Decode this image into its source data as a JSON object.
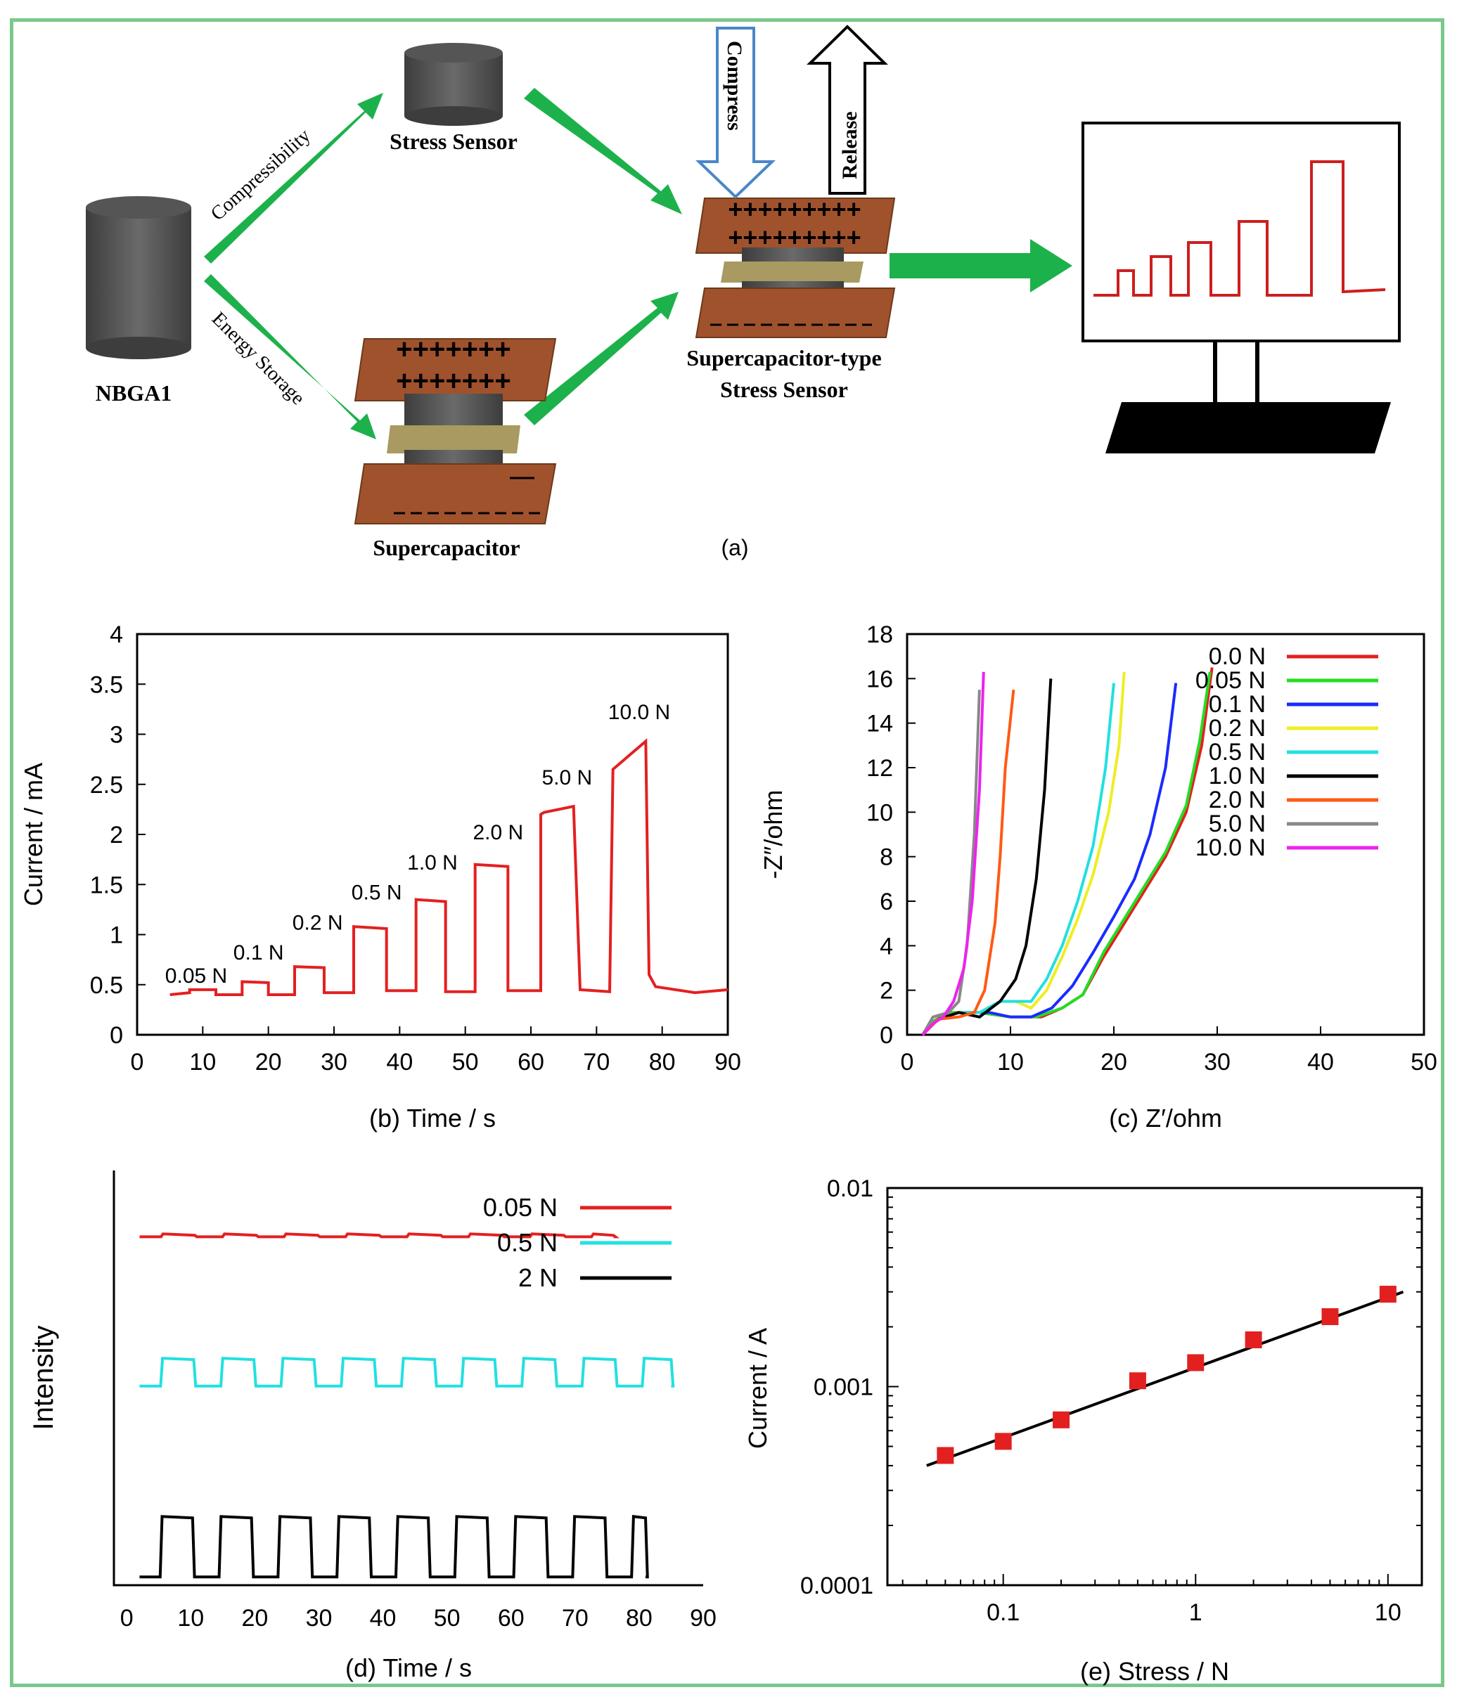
{
  "colors": {
    "arrow": "#1db14b",
    "plate": "#8b4513",
    "cyl": "#555555",
    "sep": "#a89a60",
    "trace": "#cc1f1f",
    "frame": "#7ac98b"
  },
  "schematic": {
    "nbga_label": "NBGA1",
    "arrow_upper": "Compressibility",
    "arrow_lower": "Energy Storage",
    "stress_sensor": "Stress Sensor",
    "supercapacitor": "Supercapacitor",
    "sc_stress_line1": "Supercapacitor-type",
    "sc_stress_line2": "Stress Sensor",
    "compress": "Compress",
    "release": "Release",
    "plus_row_small": "+++++++",
    "plus_row_big": "+++++++++",
    "caption": "(a)"
  },
  "chart_data": [
    {
      "id": "b",
      "type": "line",
      "xlabel": "(b) Time / s",
      "ylabel": "Current / mA",
      "xlim": [
        0,
        90
      ],
      "ylim": [
        0,
        4
      ],
      "xticks": [
        0,
        10,
        20,
        30,
        40,
        50,
        60,
        70,
        80,
        90
      ],
      "yticks": [
        "0",
        "0.5",
        "1",
        "1.5",
        "2",
        "2.5",
        "3",
        "3.5",
        "4"
      ],
      "annotations": [
        {
          "text": "0.05 N",
          "x": 9,
          "y": 0.52
        },
        {
          "text": "0.1 N",
          "x": 18.5,
          "y": 0.75
        },
        {
          "text": "0.2 N",
          "x": 27.5,
          "y": 1.05
        },
        {
          "text": "0.5 N",
          "x": 36.5,
          "y": 1.35
        },
        {
          "text": "1.0 N",
          "x": 45,
          "y": 1.65
        },
        {
          "text": "2.0 N",
          "x": 55,
          "y": 1.95
        },
        {
          "text": "5.0 N",
          "x": 65.5,
          "y": 2.5
        },
        {
          "text": "10.0 N",
          "x": 76.5,
          "y": 3.15
        }
      ],
      "series": [
        {
          "x": [
            5,
            8,
            8,
            12,
            12,
            16,
            16,
            20,
            20,
            24,
            24,
            28.5,
            28.5,
            33,
            33,
            38,
            38,
            42.5,
            42.5,
            47,
            47,
            51.5,
            51.5,
            56.5,
            56.5,
            61.5,
            61.5,
            62,
            66.5,
            67.5,
            72,
            72.5,
            77.5,
            78,
            79,
            85,
            90
          ],
          "y": [
            0.4,
            0.42,
            0.45,
            0.45,
            0.4,
            0.4,
            0.53,
            0.52,
            0.4,
            0.4,
            0.68,
            0.67,
            0.42,
            0.42,
            1.08,
            1.06,
            0.44,
            0.44,
            1.35,
            1.33,
            0.43,
            0.43,
            1.7,
            1.68,
            0.44,
            0.44,
            2.2,
            2.22,
            2.28,
            0.45,
            0.43,
            2.65,
            2.93,
            0.6,
            0.48,
            0.42,
            0.45
          ]
        }
      ]
    },
    {
      "id": "c",
      "type": "line",
      "xlabel": "(c) Z′/ohm",
      "ylabel": "-Z″/ohm",
      "xlim": [
        0,
        50
      ],
      "ylim": [
        0,
        18
      ],
      "xticks": [
        0,
        10,
        20,
        30,
        40,
        50
      ],
      "yticks": [
        "0",
        "2",
        "4",
        "6",
        "8",
        "10",
        "12",
        "14",
        "16",
        "18"
      ],
      "legend_position": "top-right",
      "series": [
        {
          "name": "0.0 N",
          "color": "#e32020",
          "x": [
            1.5,
            2.5,
            4,
            7,
            10,
            13,
            15,
            17,
            19,
            21,
            23,
            25,
            27,
            28.5,
            29.5
          ],
          "y": [
            0,
            0.6,
            1,
            1,
            0.8,
            0.8,
            1.2,
            1.8,
            3.5,
            5,
            6.5,
            8,
            10,
            13,
            16.5
          ]
        },
        {
          "name": "0.05 N",
          "color": "#22dd22",
          "x": [
            1.5,
            2.5,
            4,
            7,
            10,
            12.5,
            15,
            17,
            19,
            21,
            23,
            25,
            27,
            28.3,
            29.3
          ],
          "y": [
            0,
            0.6,
            1,
            1,
            0.8,
            0.8,
            1.2,
            1.8,
            3.7,
            5.2,
            6.7,
            8.2,
            10.3,
            13.2,
            16.3
          ]
        },
        {
          "name": "0.1 N",
          "color": "#1a2bff",
          "x": [
            1.5,
            3,
            5,
            8,
            10,
            12,
            14,
            16,
            18,
            20,
            22,
            23.5,
            25,
            26
          ],
          "y": [
            0,
            0.7,
            1,
            1,
            0.8,
            0.8,
            1.2,
            2.2,
            3.7,
            5.3,
            7,
            9,
            12,
            15.8
          ]
        },
        {
          "name": "0.2 N",
          "color": "#eeee22",
          "x": [
            1.5,
            3,
            5,
            7,
            9,
            10.5,
            12,
            13.5,
            15,
            16.5,
            18,
            19.5,
            20.5,
            21
          ],
          "y": [
            0,
            0.7,
            1,
            1,
            1.5,
            1.5,
            1.2,
            2,
            3.5,
            5.2,
            7.2,
            10,
            13,
            16.3
          ]
        },
        {
          "name": "0.5 N",
          "color": "#22e0e0",
          "x": [
            1.5,
            3,
            5,
            7,
            9,
            10.5,
            12,
            13.5,
            15,
            16.5,
            18,
            19.2,
            20
          ],
          "y": [
            0,
            0.7,
            1,
            1,
            1.5,
            1.5,
            1.5,
            2.5,
            4,
            6,
            8.5,
            12,
            15.8
          ]
        },
        {
          "name": "1.0 N",
          "color": "#000000",
          "x": [
            1.5,
            3,
            5,
            7,
            9,
            10.5,
            11.5,
            12.5,
            13.3,
            13.9
          ],
          "y": [
            0,
            0.7,
            1,
            0.8,
            1.5,
            2.5,
            4,
            7,
            11,
            16
          ]
        },
        {
          "name": "2.0 N",
          "color": "#ff5a14",
          "x": [
            1.5,
            3,
            5,
            6.5,
            7.5,
            8.5,
            9,
            9.5,
            10.3
          ],
          "y": [
            0,
            0.7,
            0.8,
            1,
            2,
            5,
            8,
            12,
            15.5
          ]
        },
        {
          "name": "5.0 N",
          "color": "#888888",
          "x": [
            1.5,
            2.5,
            4,
            5,
            5.8,
            6.5,
            7
          ],
          "y": [
            0,
            0.8,
            1,
            1.5,
            4,
            9,
            15.5
          ]
        },
        {
          "name": "10.0 N",
          "color": "#ee22ee",
          "x": [
            1.5,
            2.5,
            3.5,
            4.5,
            5.5,
            6.3,
            7,
            7.4
          ],
          "y": [
            0,
            0.5,
            0.8,
            1.5,
            3,
            6,
            11,
            16.3
          ]
        }
      ]
    },
    {
      "id": "d",
      "type": "line",
      "xlabel": "(d) Time / s",
      "ylabel": "Intensity",
      "xlim": [
        -2,
        90
      ],
      "xticks": [
        0,
        10,
        20,
        30,
        40,
        50,
        60,
        70,
        80,
        90
      ],
      "legend_position": "top-right",
      "series": [
        {
          "name": "0.05 N",
          "color": "#e32020",
          "period": 9.6,
          "x_start": 2,
          "x_end": 76,
          "baseline": 0.16,
          "amplitude": 0.025
        },
        {
          "name": "0.5 N",
          "color": "#22e0e0",
          "period": 9.4,
          "x_start": 2,
          "x_end": 85,
          "baseline": 0.52,
          "amplitude": 0.24
        },
        {
          "name": "2 N",
          "color": "#000000",
          "period": 9.2,
          "x_start": 2,
          "x_end": 81,
          "baseline": 0.98,
          "amplitude": 0.52
        }
      ]
    },
    {
      "id": "e",
      "type": "scatter",
      "xlabel": "(e) Stress / N",
      "ylabel": "Current / A",
      "xscale": "log",
      "yscale": "log",
      "xlim": [
        0.025,
        15
      ],
      "ylim": [
        0.0001,
        0.01
      ],
      "xticks": [
        0.1,
        1,
        10
      ],
      "xtick_labels": [
        "0.1",
        "1",
        "10"
      ],
      "yticks": [
        0.0001,
        0.001,
        0.01
      ],
      "ytick_labels": [
        "0.0001",
        "0.001",
        "0.01"
      ],
      "series": [
        {
          "x": [
            0.05,
            0.1,
            0.2,
            0.5,
            1,
            2,
            5,
            10
          ],
          "y": [
            0.00045,
            0.00053,
            0.00068,
            0.00107,
            0.00132,
            0.00172,
            0.00225,
            0.00292
          ]
        }
      ],
      "fit_line": {
        "x": [
          0.04,
          12
        ],
        "y": [
          0.0004,
          0.003
        ]
      }
    }
  ]
}
